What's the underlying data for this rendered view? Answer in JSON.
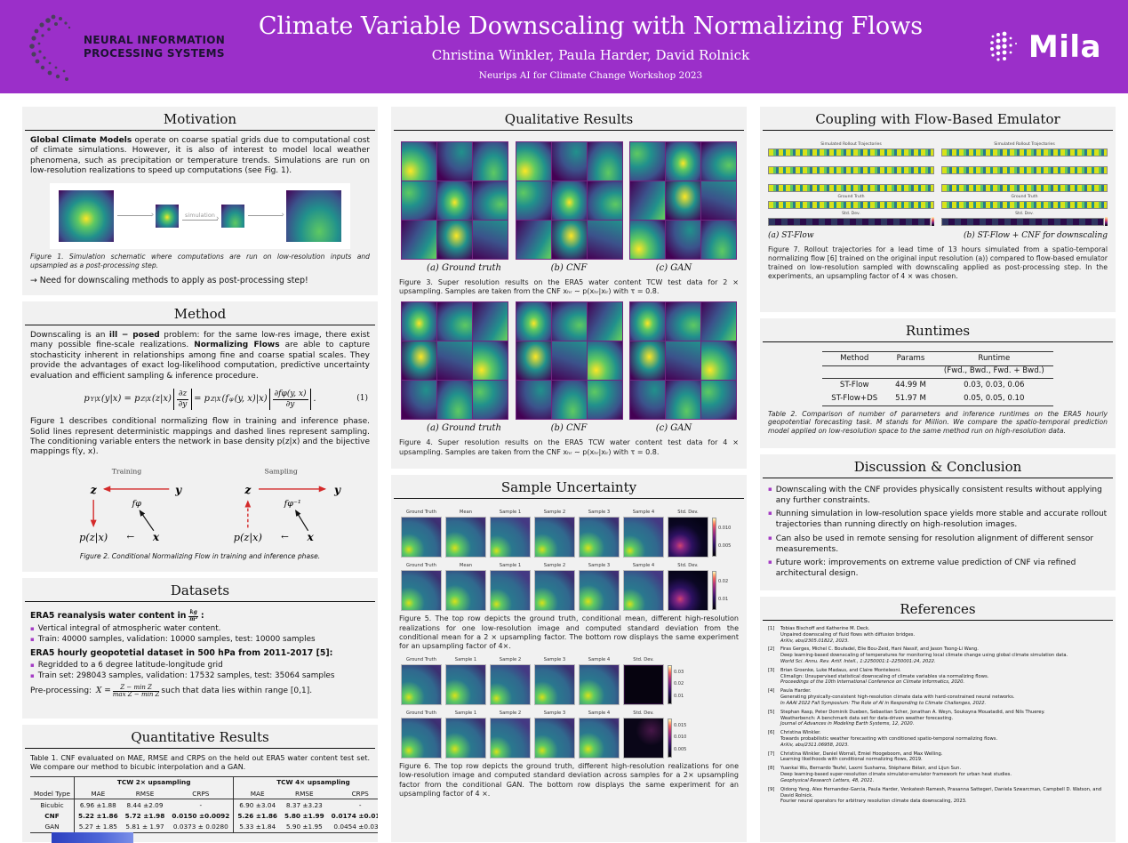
{
  "colors": {
    "header_purple": "#9b2fc9",
    "section_bg": "#f1f1f1",
    "bullet_purple": "#a43bc4"
  },
  "header": {
    "title": "Climate Variable Downscaling with Normalizing Flows",
    "authors": "Christina Winkler, Paula Harder, David Rolnick",
    "workshop": "Neurips AI for Climate Change Workshop 2023",
    "neurips_line1": "NEURAL INFORMATION",
    "neurips_line2": "PROCESSING SYSTEMS",
    "mila": "Mila"
  },
  "left": {
    "motivation": {
      "title": "Motivation",
      "para": [
        {
          "t": "Global Climate Models",
          "b": true
        },
        {
          "t": " operate on coarse spatial grids due to computational cost of climate simulations. However, it is also of interest to model local weather phenomena, such as precipitation or temperature trends. Simulations are run on low-resolution realizations to speed up computations (see Fig. 1).",
          "b": false
        }
      ],
      "fig1_label": "simulation",
      "fig1_caption": "Figure 1. Simulation schematic where computations are run on low-resolution inputs and upsampled as a post-processing step.",
      "note": "→ Need for downscaling methods to apply as post-processing step!"
    },
    "method": {
      "title": "Method",
      "para1": [
        {
          "t": "Downscaling is an ",
          "b": false
        },
        {
          "t": "ill − posed",
          "b": true
        },
        {
          "t": " problem: for the same low-res image, there exist many possible fine-scale realizations. ",
          "b": false
        },
        {
          "t": "Normalizing Flows",
          "b": true
        },
        {
          "t": " are able to capture stochasticity inherent in relationships among fine and coarse spatial scales. They provide the advantages of exact log-likelihood computation, predictive uncertainty evaluation and efficient sampling & inference procedure.",
          "b": false
        }
      ],
      "eq": {
        "p1": "p",
        "sub1": "Y|X",
        "p2": "(y|x) = p",
        "sub2": "Z|X",
        "p3": "(z|x)",
        "f1top": "∂z",
        "f1bot": "∂y",
        "p4": "= p",
        "sub3": "Z|X",
        "p5": "(f",
        "sub4": "φ",
        "p6": "(y, x)|x)",
        "f2top": "∂fφ(y, x)",
        "f2bot": "∂y",
        "dot": ".",
        "num": "(1)"
      },
      "para2": "Figure 1 describes conditional normalizing flow in training and inference phase. Solid lines represent deterministic mappings and dashed lines represent sampling. The conditioning variable enters the network in base density p(z|x) and the bijective mappings f(y, x).",
      "fig2": {
        "training": "Training",
        "sampling": "Sampling",
        "z": "z",
        "y": "y",
        "f": "fφ",
        "finv": "fφ⁻¹",
        "pzx": "p(z|x)",
        "arrow": "←",
        "x": "x"
      },
      "fig2_caption": "Figure 2. Conditional Normalizing Flow in training and inference phase."
    },
    "datasets": {
      "title": "Datasets",
      "h1_pre": "ERA5 reanalysis water content in",
      "h1_frac_top": "kg",
      "h1_frac_bot": "m²",
      "h1_colon": ":",
      "bullets1": [
        "Vertical integral of atmospheric water content.",
        "Train: 40000 samples, validation: 10000 samples, test: 10000 samples"
      ],
      "h2": "ERA5 hourly geopotetial dataset in 500 hPa from 2011-2017 [5]:",
      "bullets2": [
        "Regridded to a 6 degree latitude-longitude grid",
        "Train set: 298043 samples, validation: 17532 samples, test: 35064 samples"
      ],
      "preproc": {
        "pre": "Pre-processing:",
        "x": "X =",
        "top": "Z − min Z",
        "bot": "max Z − min Z",
        "post": "such that data lies within range [0,1]."
      }
    },
    "quant": {
      "title": "Quantitative Results",
      "caption": "Table 1. CNF evaluated on MAE, RMSE and CRPS on the held out ERA5 water content test set. We compare our method to bicubic interpolation and a GAN.",
      "table": {
        "col0": "Model Type",
        "groups": [
          "TCW 2× upsampling",
          "TCW 4× upsampling"
        ],
        "subcols": [
          "MAE",
          "RMSE",
          "CRPS",
          "MAE",
          "RMSE",
          "CRPS"
        ],
        "rows": [
          {
            "model": "Bicubic",
            "bold": false,
            "vals": [
              "6.96 ±1.88",
              "8.44 ±2.09",
              "-",
              "6.90 ±3.04",
              "8.37 ±3.23",
              "-"
            ]
          },
          {
            "model": "CNF",
            "bold": true,
            "vals": [
              "5.22 ±1.86",
              "5.72 ±1.98",
              "0.0150 ±0.0092",
              "5.26 ±1.86",
              "5.80 ±1.99",
              "0.0174 ±0.0118"
            ]
          },
          {
            "model": "GAN",
            "bold": false,
            "vals": [
              "5.27 ± 1.85",
              "5.81 ± 1.97",
              "0.0373 ± 0.0280",
              "5.33 ±1.84",
              "5.90 ±1.95",
              "0.0454 ±0.0393"
            ]
          }
        ]
      }
    }
  },
  "middle": {
    "qualitative": {
      "title": "Qualitative Results",
      "fig3_sublabels": [
        "(a) Ground truth",
        "(b) CNF",
        "(c) GAN"
      ],
      "fig3_caption": "Figure 3. Super resolution results on the ERA5 water content TCW test data for 2 × upsampling. Samples are taken from the CNF xₕᵣ ∼ p(xₕᵣ|xₗᵣ) with τ = 0.8.",
      "fig4_sublabels": [
        "(a) Ground truth",
        "(b) CNF",
        "(c) GAN"
      ],
      "fig4_caption": "Figure 4. Super resolution results on the ERA5 TCW water content test data for 4 × upsampling. Samples are taken from the CNF xₕᵣ ∼ p(xₕᵣ|xₗᵣ) with τ = 0.8."
    },
    "uncertainty": {
      "title": "Sample Uncertainty",
      "fig5_row1": {
        "labels": [
          "Ground Truth",
          "Mean",
          "Sample 1",
          "Sample 2",
          "Sample 3",
          "Sample 4",
          "Std. Dev."
        ],
        "cbar": [
          "0.010",
          "0.005"
        ],
        "std": "stdA"
      },
      "fig5_row2": {
        "labels": [
          "Ground Truth",
          "Mean",
          "Sample 1",
          "Sample 2",
          "Sample 3",
          "Sample 4",
          "Std. Dev."
        ],
        "cbar": [
          "0.02",
          "0.01"
        ],
        "std": "stdA"
      },
      "fig5_caption": "Figure 5. The top row depicts the ground truth, conditional mean, different high-resolution realizations for one low-resolution image and computed standard deviation from the conditional mean for a 2 × upsampling factor. The bottom row displays the same experiment for an upsampling factor of 4×.",
      "fig6_row1": {
        "labels": [
          "Ground Truth",
          "Sample 1",
          "Sample 2",
          "Sample 3",
          "Sample 4",
          "Std. Dev."
        ],
        "cbar": [
          "0.03",
          "0.02",
          "0.01"
        ],
        "std": "stdB"
      },
      "fig6_row2": {
        "labels": [
          "Ground Truth",
          "Sample 1",
          "Sample 2",
          "Sample 3",
          "Sample 4",
          "Std. Dev."
        ],
        "cbar": [
          "0.015",
          "0.010",
          "0.005"
        ],
        "std": "stdC"
      },
      "fig6_caption": "Figure 6. The top row depicts the ground truth, different high-resolution realizations for one low-resolution image and computed standard deviation across samples for a 2× upsampling factor from the conditional GAN. The bottom row displays the same experiment for an upsampling factor of 4 ×."
    }
  },
  "right": {
    "coupling": {
      "title": "Coupling with Flow-Based Emulator",
      "strip_labels": [
        "Simulated Rollout Trajectories",
        "",
        "",
        "Ground Truth",
        "Std. Dev."
      ],
      "sublabel_a": "(a) ST-Flow",
      "sublabel_b": "(b) ST-Flow + CNF for downscaling",
      "caption": "Figure 7. Rollout trajectories for a lead time of 13 hours simulated from a spatio-temporal normalizing flow [6] trained on the original input resolution (a)) compared to flow-based emulator trained on low-resolution sampled with downscaling applied as post-processing step. In the experiments, an upsampling factor of 4 × was chosen."
    },
    "runtimes": {
      "title": "Runtimes",
      "head": {
        "method": "Method",
        "params": "Params",
        "runtime": "Runtime",
        "runtime2": "(Fwd., Bwd., Fwd. + Bwd.)"
      },
      "rows": [
        {
          "method": "ST-Flow",
          "params": "44.99 M",
          "runtime": "0.03, 0.03, 0.06"
        },
        {
          "method": "ST-Flow+DS",
          "params": "51.97 M",
          "runtime": "0.05, 0.05, 0.10"
        }
      ],
      "caption": "Table 2. Comparison of number of parameters and inference runtimes on the ERA5 hourly geopotential forecasting task. M stands for Million. We compare the spatio-temporal prediction model applied on low-resolution space to the same method run on high-resolution data."
    },
    "discussion": {
      "title": "Discussion & Conclusion",
      "bullets": [
        "Downscaling with the CNF provides physically consistent results without applying any further constraints.",
        "Running simulation in low-resolution space yields more stable and accurate rollout trajectories than running directly on high-resolution images.",
        "Can also be used in remote sensing for resolution alignment of different sensor measurements.",
        "Future work: improvements on extreme value prediction of CNF via refined architectural design."
      ]
    },
    "references": {
      "title": "References",
      "items": [
        {
          "num": "[1]",
          "authors": "Tobias Bischoff and Katherine M. Deck.",
          "title": "Unpaired downscaling of fluid flows with diffusion bridges.",
          "venue": "ArXiv, abs/2305.01822, 2023."
        },
        {
          "num": "[2]",
          "authors": "Firas Gerges, Michel C. Boufadel, Elie Bou-Zeid, Hani Nassif, and Jason Tsong-Li Wang.",
          "title": "Deep learning-based downscaling of temperatures for monitoring local climate change using global climate simulation data.",
          "venue": "World Sci. Annu. Rev. Artif. Intell., 1:2250001:1–2250001:24, 2022."
        },
        {
          "num": "[3]",
          "authors": "Brian Groenke, Luke Madaus, and Claire Monteleoni.",
          "title": "Climalign: Unsupervised statistical downscaling of climate variables via normalizing flows.",
          "venue": "Proceedings of the 10th International Conference on Climate Informatics, 2020."
        },
        {
          "num": "[4]",
          "authors": "Paula Harder.",
          "title": "Generating physically-consistent high-resolution climate data with hard-constrained neural networks.",
          "venue": "In AAAI 2022 Fall Symposium: The Role of AI in Responding to Climate Challenges, 2022."
        },
        {
          "num": "[5]",
          "authors": "Stephan Rasp, Peter Dominik Dueben, Sebastian Scher, Jonathan A. Weyn, Soukayna Mouatadid, and Nils Thuerey.",
          "title": "Weatherbench: A benchmark data set for data-driven weather forecasting.",
          "venue": "Journal of Advances in Modeling Earth Systems, 12, 2020."
        },
        {
          "num": "[6]",
          "authors": "Christina Winkler.",
          "title": "Towards probabilistic weather forecasting with conditioned spatio-temporal normalizing flows.",
          "venue": "ArXiv, abs/2311.06958, 2023."
        },
        {
          "num": "[7]",
          "authors": "Christina Winkler, Daniel Worrall, Emiel Hoogeboom, and Max Welling.",
          "title": "Learning likelihoods with conditional normalizing flows, 2019.",
          "venue": ""
        },
        {
          "num": "[8]",
          "authors": "Yuankai Wu, Bernardo Teufel, Laxmi Sushama, Stéphane Bélair, and Lijun Sun.",
          "title": "Deep learning-based super-resolution climate simulator-emulator framework for urban heat studies.",
          "venue": "Geophysical Research Letters, 48, 2021."
        },
        {
          "num": "[9]",
          "authors": "Qidong Yang, Alex Hernandez-Garcia, Paula Harder, Venkatesh Ramesh, Prasanna Sattegeri, Daniela Szwarcman, Campbell D. Watson, and David Rolnick.",
          "title": "Fourier neural operators for arbitrary resolution climate data downscaling, 2023.",
          "venue": ""
        }
      ]
    }
  }
}
